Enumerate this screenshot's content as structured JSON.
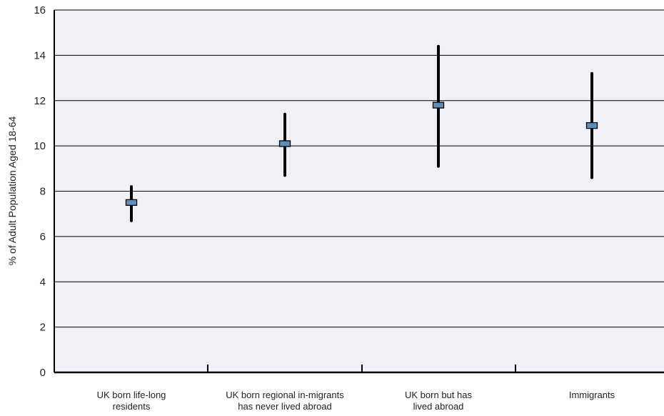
{
  "chart_data": {
    "type": "error-bar",
    "title": "",
    "xlabel": "",
    "ylabel": "% of Adult Population Aged 18-64",
    "ylim": [
      0,
      16
    ],
    "yticks": [
      0,
      2,
      4,
      6,
      8,
      10,
      12,
      14,
      16
    ],
    "grid": true,
    "categories": [
      [
        "UK born life-long",
        "residents"
      ],
      [
        "UK born regional in-migrants",
        "has never lived abroad"
      ],
      [
        "UK born but has",
        "lived abroad"
      ],
      [
        "Immigrants"
      ]
    ],
    "series": [
      {
        "estimate": [
          7.5,
          10.1,
          11.8,
          10.9
        ],
        "lower": [
          6.7,
          8.7,
          9.1,
          8.6
        ],
        "upper": [
          8.2,
          11.4,
          14.4,
          13.2
        ]
      }
    ]
  },
  "colors": {
    "plot_background": "#f0f0f6",
    "marker_fill": "#5f8fb6",
    "whisker": "#000000"
  }
}
